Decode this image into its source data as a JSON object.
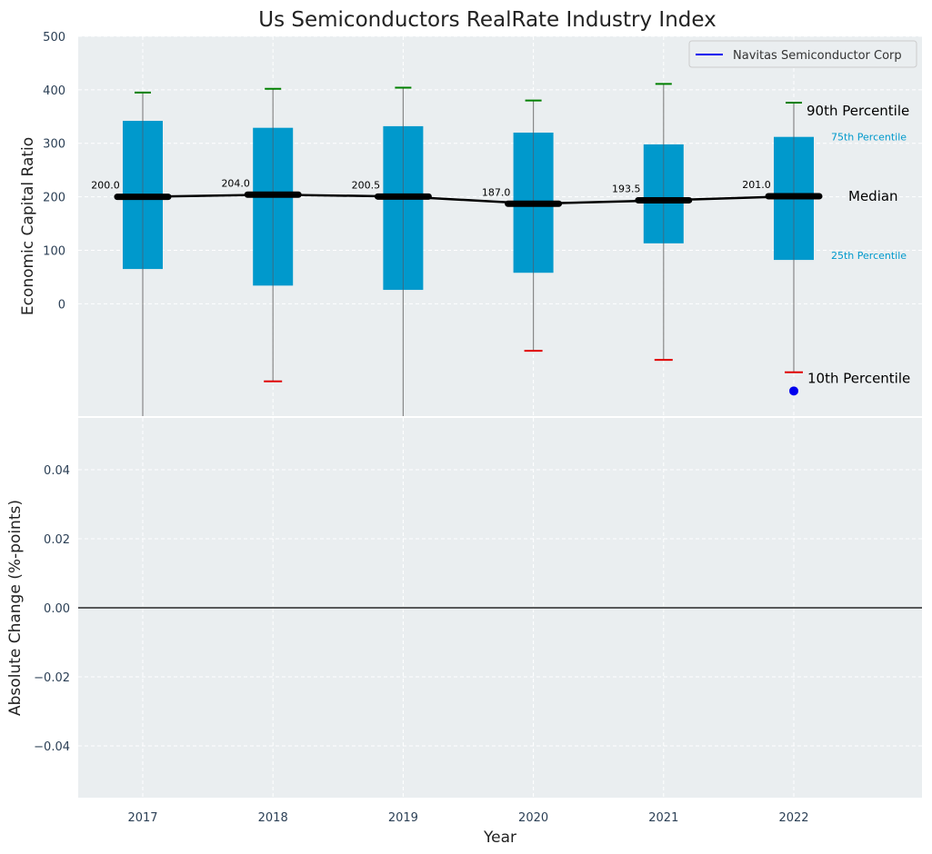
{
  "chart_data": [
    {
      "type": "box",
      "title": "Us Semiconductors RealRate Industry Index",
      "xlabel": "",
      "ylabel": "Economic Capital Ratio",
      "ylim": [
        -210,
        500
      ],
      "yticks": [
        "0",
        "100",
        "200",
        "300",
        "400",
        "500"
      ],
      "categories": [
        "2017",
        "2018",
        "2019",
        "2020",
        "2021",
        "2022"
      ],
      "grid": true,
      "legend": {
        "position": "top-right",
        "entries": [
          "Navitas Semiconductor Corp"
        ]
      },
      "series": [
        {
          "name": "90th Percentile",
          "values": [
            395,
            402,
            404,
            380,
            411,
            376
          ]
        },
        {
          "name": "75th Percentile",
          "values": [
            342,
            329,
            332,
            320,
            298,
            312
          ]
        },
        {
          "name": "Median",
          "values": [
            200.0,
            204.0,
            200.5,
            187.0,
            193.5,
            201.0
          ]
        },
        {
          "name": "25th Percentile",
          "values": [
            65,
            34,
            26,
            58,
            113,
            82
          ]
        },
        {
          "name": "10th Percentile",
          "values": [
            -220,
            -145,
            -220,
            -88,
            -105,
            -128
          ]
        },
        {
          "name": "Navitas Semiconductor Corp",
          "values": [
            null,
            null,
            null,
            null,
            null,
            -163
          ]
        }
      ],
      "median_labels": [
        "200.0",
        "204.0",
        "200.5",
        "187.0",
        "193.5",
        "201.0"
      ],
      "annotations": [
        "90th Percentile",
        "75th Percentile",
        "Median",
        "25th Percentile",
        "10th Percentile"
      ],
      "colors": {
        "box": "#0099cc",
        "median": "#000000",
        "top_whisker_cap": "#008000",
        "bottom_whisker_cap": "#e00000",
        "company_point": "#0000ee",
        "background": "#eaeef0"
      }
    },
    {
      "type": "line",
      "title": "",
      "xlabel": "Year",
      "ylabel": "Absolute Change (%-points)",
      "ylim": [
        -0.055,
        0.055
      ],
      "yticks": [
        "−0.04",
        "−0.02",
        "0.00",
        "0.02",
        "0.04"
      ],
      "categories": [
        "2017",
        "2018",
        "2019",
        "2020",
        "2021",
        "2022"
      ],
      "grid": true,
      "series": [],
      "reference_line": 0
    }
  ]
}
